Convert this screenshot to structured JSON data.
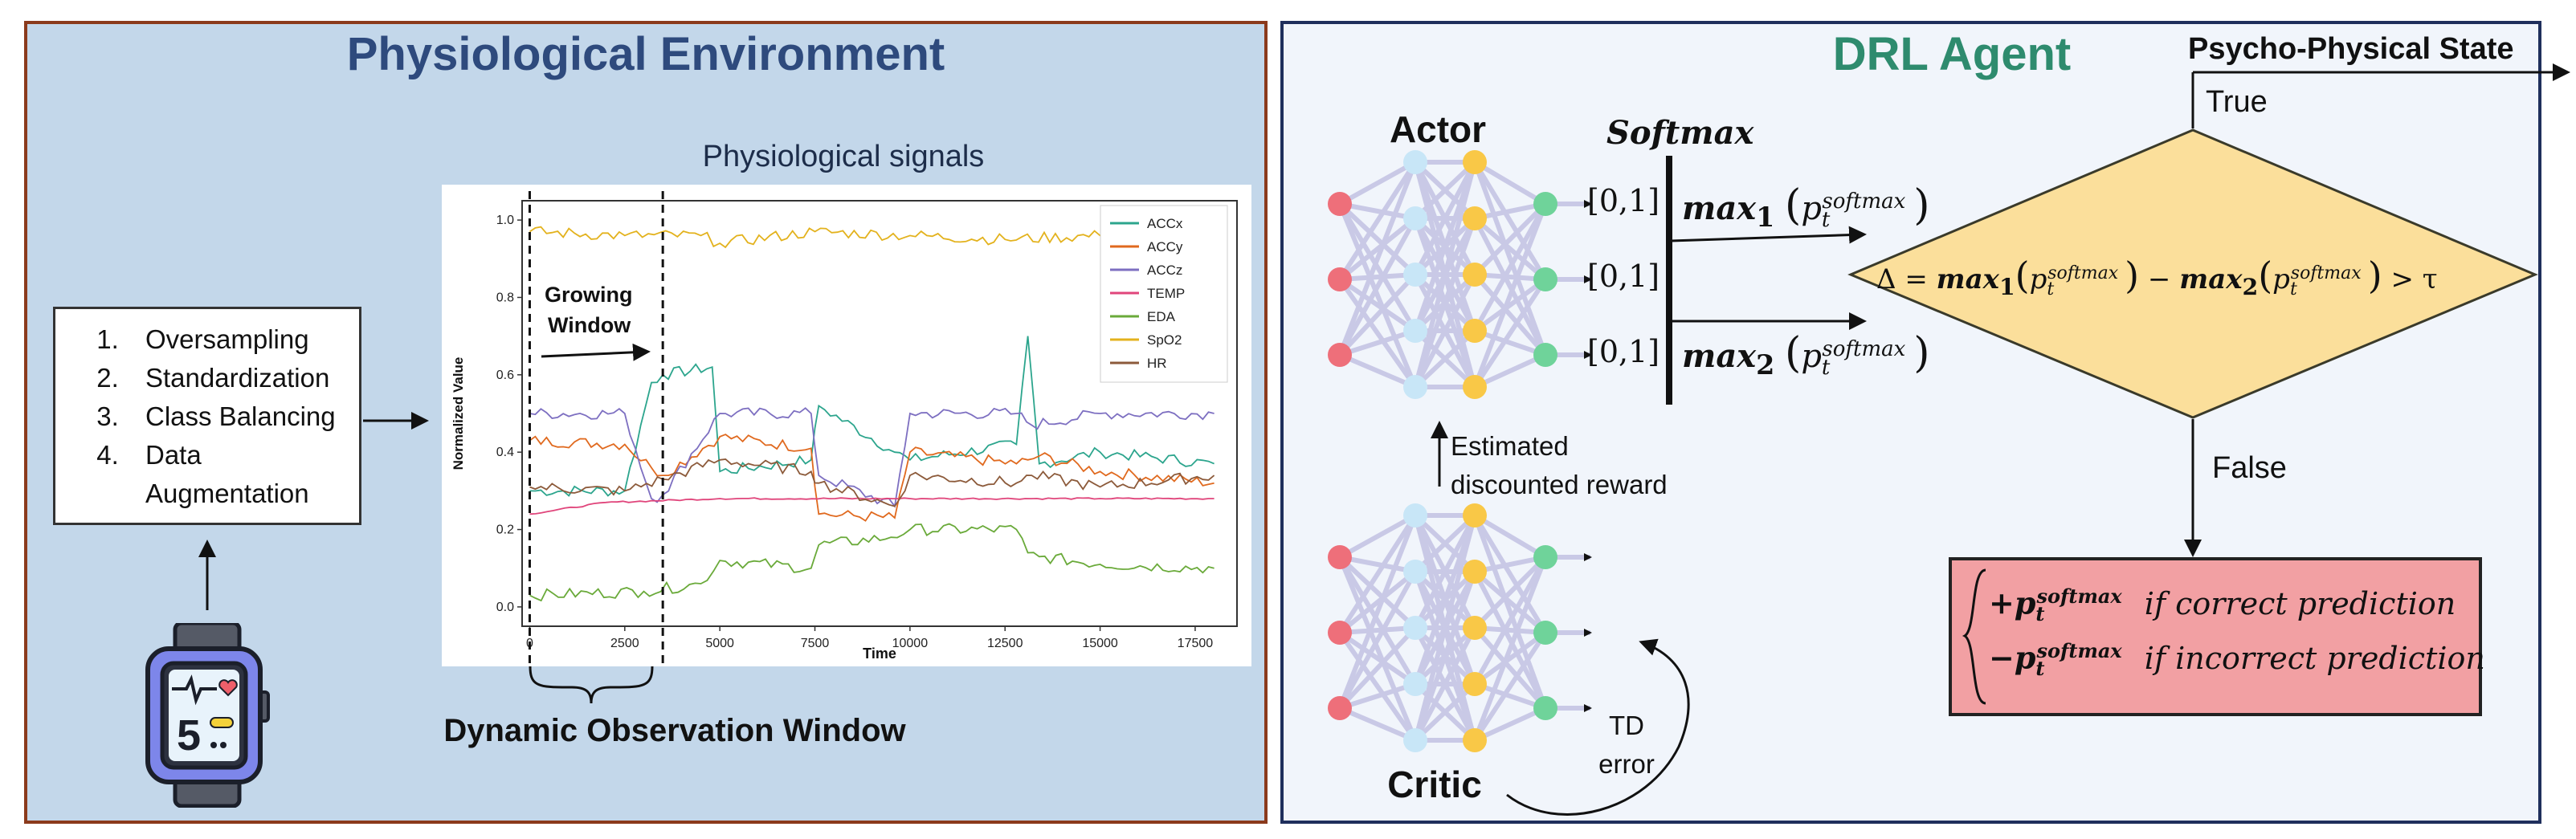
{
  "left_panel": {
    "title": "Physiological Environment",
    "preprocessing_steps": [
      "Oversampling",
      "Standardization",
      "Class Balancing",
      "Data Augmentation"
    ],
    "device_icon": "smartwatch-icon",
    "device_digit": "5",
    "window_caption": "Dynamic Observation Window"
  },
  "chart_title": "Physiological signals",
  "chart_data": {
    "type": "line",
    "xlabel": "Time",
    "ylabel": "Normalized Value",
    "xlim": [
      -200,
      18600
    ],
    "ylim": [
      -0.05,
      1.05
    ],
    "xticks": [
      0,
      2500,
      5000,
      7500,
      10000,
      12500,
      15000,
      17500
    ],
    "yticks": [
      0.0,
      0.2,
      0.4,
      0.6,
      0.8,
      1.0
    ],
    "ytick_labels": [
      "0.0",
      "0.2",
      "0.4",
      "0.6",
      "0.8",
      "1.0"
    ],
    "legend_position": "top-right",
    "annotation": {
      "label_line1": "Growing",
      "label_line2": "Window",
      "window_start": 0,
      "window_end": 3500
    },
    "series": [
      {
        "name": "ACCx",
        "color": "#2ca58d",
        "x": [
          0,
          2500,
          3200,
          3500,
          4800,
          5000,
          7400,
          7600,
          9600,
          10000,
          12800,
          13100,
          13400,
          15000,
          18000
        ],
        "y": [
          0.3,
          0.3,
          0.58,
          0.6,
          0.62,
          0.35,
          0.38,
          0.52,
          0.4,
          0.38,
          0.42,
          0.7,
          0.37,
          0.4,
          0.37
        ]
      },
      {
        "name": "ACCy",
        "color": "#e0691e",
        "x": [
          0,
          2500,
          3200,
          3500,
          5000,
          7400,
          7600,
          9600,
          10000,
          12800,
          13400,
          15000,
          18000
        ],
        "y": [
          0.43,
          0.42,
          0.36,
          0.34,
          0.44,
          0.41,
          0.24,
          0.23,
          0.4,
          0.37,
          0.39,
          0.35,
          0.32
        ]
      },
      {
        "name": "ACCz",
        "color": "#7d6fc1",
        "x": [
          0,
          2500,
          3200,
          3500,
          5000,
          7400,
          7600,
          9600,
          10000,
          12800,
          13200,
          15000,
          18000
        ],
        "y": [
          0.5,
          0.5,
          0.28,
          0.29,
          0.5,
          0.5,
          0.34,
          0.26,
          0.5,
          0.5,
          0.47,
          0.5,
          0.5
        ]
      },
      {
        "name": "TEMP",
        "color": "#e0457b",
        "x": [
          0,
          2000,
          5000,
          10000,
          15000,
          18000
        ],
        "y": [
          0.24,
          0.27,
          0.28,
          0.28,
          0.28,
          0.28
        ]
      },
      {
        "name": "EDA",
        "color": "#6aaa3a",
        "x": [
          0,
          3000,
          4500,
          5000,
          7400,
          7600,
          9500,
          10000,
          12800,
          13100,
          13400,
          15000,
          18000
        ],
        "y": [
          0.03,
          0.04,
          0.06,
          0.12,
          0.1,
          0.16,
          0.18,
          0.2,
          0.2,
          0.14,
          0.13,
          0.11,
          0.1
        ]
      },
      {
        "name": "SpO2",
        "color": "#e3b21d",
        "x": [
          0,
          2500,
          4500,
          5000,
          7500,
          10000,
          12500,
          15000,
          18000
        ],
        "y": [
          0.97,
          0.96,
          0.96,
          0.94,
          0.97,
          0.96,
          0.95,
          0.96,
          0.95
        ]
      },
      {
        "name": "HR",
        "color": "#8c5a3a",
        "x": [
          0,
          2500,
          3500,
          5000,
          7400,
          7600,
          9600,
          10000,
          12800,
          13200,
          15000,
          18000
        ],
        "y": [
          0.31,
          0.3,
          0.33,
          0.38,
          0.35,
          0.32,
          0.26,
          0.34,
          0.32,
          0.34,
          0.31,
          0.34
        ]
      }
    ]
  },
  "right_panel": {
    "title": "DRL Agent",
    "actor_label": "Actor",
    "critic_label": "Critic",
    "softmax_label": "Softmax",
    "outputs": [
      "[0,1]",
      "[0,1]",
      "[0,1]"
    ],
    "max1_word": "max",
    "max1_sub": "1",
    "max2_word": "max",
    "max2_sub": "2",
    "p_letter": "p",
    "t_sub": "t",
    "softmax_sup": "softmax",
    "estimated_reward_line1": "Estimated",
    "estimated_reward_line2": "discounted reward",
    "td_error_line1": "TD",
    "td_error_line2": "error",
    "decision_delta": "Δ =",
    "decision_minus": "−",
    "decision_gt": "> τ",
    "true_label": "True",
    "false_label": "False",
    "state_label": "Psycho-Physical State",
    "reward_plus": "+",
    "reward_minus": "−",
    "reward_correct": "if correct prediction",
    "reward_incorrect": "if incorrect prediction"
  },
  "colors": {
    "left_bg": "#c3d7ea",
    "right_bg": "#f1f5fb",
    "decision_fill": "#fbdf9b",
    "reward_fill": "#f2a0a3",
    "node_red": "#ee6f7a",
    "node_blue": "#c8e6f7",
    "node_yellow": "#f9c847",
    "node_green": "#6fd39a"
  }
}
